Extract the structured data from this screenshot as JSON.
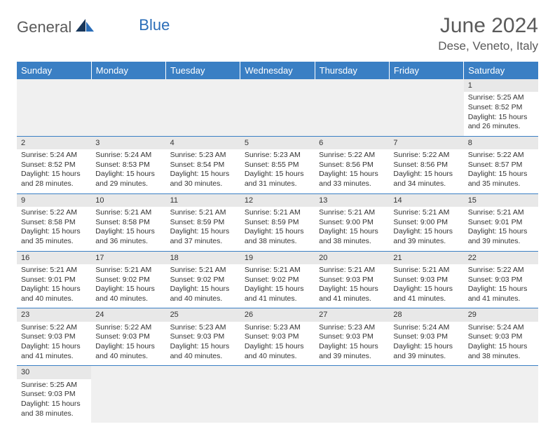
{
  "logo": {
    "part1": "General",
    "part2": "Blue"
  },
  "title": "June 2024",
  "location": "Dese, Veneto, Italy",
  "colors": {
    "header_bg": "#3a7fc4",
    "header_text": "#ffffff",
    "day_num_bg": "#e8e8e8",
    "border": "#3a7fc4",
    "logo_gray": "#5a5a5a",
    "logo_blue": "#2a6db8"
  },
  "weekdays": [
    "Sunday",
    "Monday",
    "Tuesday",
    "Wednesday",
    "Thursday",
    "Friday",
    "Saturday"
  ],
  "weeks": [
    [
      null,
      null,
      null,
      null,
      null,
      null,
      {
        "n": "1",
        "sr": "Sunrise: 5:25 AM",
        "ss": "Sunset: 8:52 PM",
        "dl": "Daylight: 15 hours and 26 minutes."
      }
    ],
    [
      {
        "n": "2",
        "sr": "Sunrise: 5:24 AM",
        "ss": "Sunset: 8:52 PM",
        "dl": "Daylight: 15 hours and 28 minutes."
      },
      {
        "n": "3",
        "sr": "Sunrise: 5:24 AM",
        "ss": "Sunset: 8:53 PM",
        "dl": "Daylight: 15 hours and 29 minutes."
      },
      {
        "n": "4",
        "sr": "Sunrise: 5:23 AM",
        "ss": "Sunset: 8:54 PM",
        "dl": "Daylight: 15 hours and 30 minutes."
      },
      {
        "n": "5",
        "sr": "Sunrise: 5:23 AM",
        "ss": "Sunset: 8:55 PM",
        "dl": "Daylight: 15 hours and 31 minutes."
      },
      {
        "n": "6",
        "sr": "Sunrise: 5:22 AM",
        "ss": "Sunset: 8:56 PM",
        "dl": "Daylight: 15 hours and 33 minutes."
      },
      {
        "n": "7",
        "sr": "Sunrise: 5:22 AM",
        "ss": "Sunset: 8:56 PM",
        "dl": "Daylight: 15 hours and 34 minutes."
      },
      {
        "n": "8",
        "sr": "Sunrise: 5:22 AM",
        "ss": "Sunset: 8:57 PM",
        "dl": "Daylight: 15 hours and 35 minutes."
      }
    ],
    [
      {
        "n": "9",
        "sr": "Sunrise: 5:22 AM",
        "ss": "Sunset: 8:58 PM",
        "dl": "Daylight: 15 hours and 35 minutes."
      },
      {
        "n": "10",
        "sr": "Sunrise: 5:21 AM",
        "ss": "Sunset: 8:58 PM",
        "dl": "Daylight: 15 hours and 36 minutes."
      },
      {
        "n": "11",
        "sr": "Sunrise: 5:21 AM",
        "ss": "Sunset: 8:59 PM",
        "dl": "Daylight: 15 hours and 37 minutes."
      },
      {
        "n": "12",
        "sr": "Sunrise: 5:21 AM",
        "ss": "Sunset: 8:59 PM",
        "dl": "Daylight: 15 hours and 38 minutes."
      },
      {
        "n": "13",
        "sr": "Sunrise: 5:21 AM",
        "ss": "Sunset: 9:00 PM",
        "dl": "Daylight: 15 hours and 38 minutes."
      },
      {
        "n": "14",
        "sr": "Sunrise: 5:21 AM",
        "ss": "Sunset: 9:00 PM",
        "dl": "Daylight: 15 hours and 39 minutes."
      },
      {
        "n": "15",
        "sr": "Sunrise: 5:21 AM",
        "ss": "Sunset: 9:01 PM",
        "dl": "Daylight: 15 hours and 39 minutes."
      }
    ],
    [
      {
        "n": "16",
        "sr": "Sunrise: 5:21 AM",
        "ss": "Sunset: 9:01 PM",
        "dl": "Daylight: 15 hours and 40 minutes."
      },
      {
        "n": "17",
        "sr": "Sunrise: 5:21 AM",
        "ss": "Sunset: 9:02 PM",
        "dl": "Daylight: 15 hours and 40 minutes."
      },
      {
        "n": "18",
        "sr": "Sunrise: 5:21 AM",
        "ss": "Sunset: 9:02 PM",
        "dl": "Daylight: 15 hours and 40 minutes."
      },
      {
        "n": "19",
        "sr": "Sunrise: 5:21 AM",
        "ss": "Sunset: 9:02 PM",
        "dl": "Daylight: 15 hours and 41 minutes."
      },
      {
        "n": "20",
        "sr": "Sunrise: 5:21 AM",
        "ss": "Sunset: 9:03 PM",
        "dl": "Daylight: 15 hours and 41 minutes."
      },
      {
        "n": "21",
        "sr": "Sunrise: 5:21 AM",
        "ss": "Sunset: 9:03 PM",
        "dl": "Daylight: 15 hours and 41 minutes."
      },
      {
        "n": "22",
        "sr": "Sunrise: 5:22 AM",
        "ss": "Sunset: 9:03 PM",
        "dl": "Daylight: 15 hours and 41 minutes."
      }
    ],
    [
      {
        "n": "23",
        "sr": "Sunrise: 5:22 AM",
        "ss": "Sunset: 9:03 PM",
        "dl": "Daylight: 15 hours and 41 minutes."
      },
      {
        "n": "24",
        "sr": "Sunrise: 5:22 AM",
        "ss": "Sunset: 9:03 PM",
        "dl": "Daylight: 15 hours and 40 minutes."
      },
      {
        "n": "25",
        "sr": "Sunrise: 5:23 AM",
        "ss": "Sunset: 9:03 PM",
        "dl": "Daylight: 15 hours and 40 minutes."
      },
      {
        "n": "26",
        "sr": "Sunrise: 5:23 AM",
        "ss": "Sunset: 9:03 PM",
        "dl": "Daylight: 15 hours and 40 minutes."
      },
      {
        "n": "27",
        "sr": "Sunrise: 5:23 AM",
        "ss": "Sunset: 9:03 PM",
        "dl": "Daylight: 15 hours and 39 minutes."
      },
      {
        "n": "28",
        "sr": "Sunrise: 5:24 AM",
        "ss": "Sunset: 9:03 PM",
        "dl": "Daylight: 15 hours and 39 minutes."
      },
      {
        "n": "29",
        "sr": "Sunrise: 5:24 AM",
        "ss": "Sunset: 9:03 PM",
        "dl": "Daylight: 15 hours and 38 minutes."
      }
    ],
    [
      {
        "n": "30",
        "sr": "Sunrise: 5:25 AM",
        "ss": "Sunset: 9:03 PM",
        "dl": "Daylight: 15 hours and 38 minutes."
      },
      null,
      null,
      null,
      null,
      null,
      null
    ]
  ]
}
